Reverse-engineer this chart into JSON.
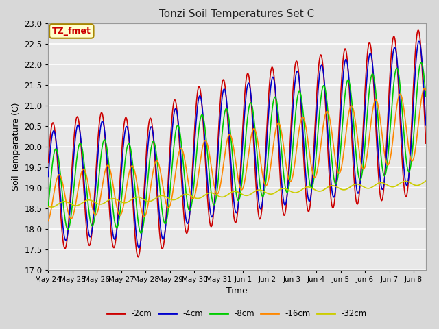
{
  "title": "Tonzi Soil Temperatures Set C",
  "xlabel": "Time",
  "ylabel": "Soil Temperature (C)",
  "annotation": "TZ_fmet",
  "ylim": [
    17.0,
    23.0
  ],
  "yticks": [
    17.0,
    17.5,
    18.0,
    18.5,
    19.0,
    19.5,
    20.0,
    20.5,
    21.0,
    21.5,
    22.0,
    22.5,
    23.0
  ],
  "xtick_labels": [
    "May 24",
    "May 25",
    "May 26",
    "May 27",
    "May 28",
    "May 29",
    "May 30",
    "May 31",
    "Jun 1",
    "Jun 2",
    "Jun 3",
    "Jun 4",
    "Jun 5",
    "Jun 6",
    "Jun 7",
    "Jun 8"
  ],
  "series": {
    "-2cm": {
      "color": "#cc0000",
      "linewidth": 1.2
    },
    "-4cm": {
      "color": "#0000cc",
      "linewidth": 1.2
    },
    "-8cm": {
      "color": "#00cc00",
      "linewidth": 1.2
    },
    "-16cm": {
      "color": "#ff8800",
      "linewidth": 1.2
    },
    "-32cm": {
      "color": "#cccc00",
      "linewidth": 1.2
    }
  },
  "legend_labels": [
    "-2cm",
    "-4cm",
    "-8cm",
    "-16cm",
    "-32cm"
  ],
  "legend_colors": [
    "#cc0000",
    "#0000cc",
    "#00cc00",
    "#ff8800",
    "#cccc00"
  ],
  "background_color": "#d8d8d8",
  "plot_bg_color": "#e8e8e8",
  "grid_color": "#ffffff",
  "annotation_bg": "#ffffcc",
  "annotation_fg": "#cc0000",
  "n_days": 15.5,
  "pts_per_day": 48
}
